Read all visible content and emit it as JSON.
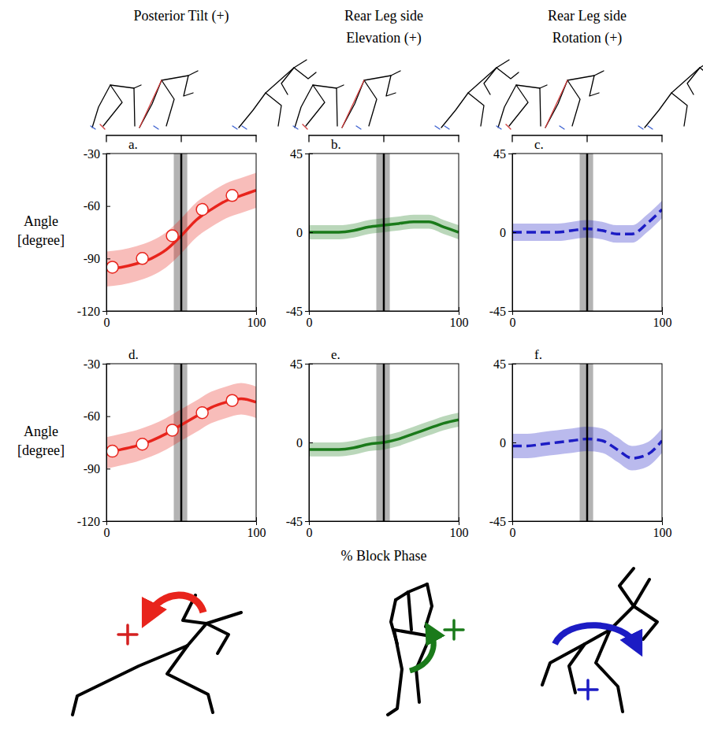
{
  "chart_data": [
    {
      "type": "line",
      "panel_label": "a.",
      "title": "Posterior Tilt (+)",
      "ylabel": "Angle [degree]",
      "x": [
        0,
        10,
        20,
        30,
        40,
        50,
        60,
        70,
        80,
        90,
        100
      ],
      "series": [
        {
          "values": [
            -96,
            -95,
            -93,
            -90,
            -85,
            -77,
            -68,
            -62,
            -57,
            -54,
            -51
          ],
          "lower": [
            -106,
            -105,
            -103,
            -100,
            -95,
            -87,
            -78,
            -72,
            -67,
            -64,
            -61
          ],
          "upper": [
            -86,
            -85,
            -83,
            -80,
            -75,
            -67,
            -58,
            -52,
            -47,
            -44,
            -41
          ],
          "color": "#e8241c",
          "line_style": "solid"
        },
        {
          "type": "scatter",
          "x": [
            4,
            24,
            44,
            64,
            84
          ],
          "values": [
            -95,
            -90,
            -77,
            -62,
            -54
          ],
          "color": "#e8241c",
          "marker": "circle"
        }
      ],
      "vline": 50,
      "vline_band": [
        45,
        54
      ],
      "xlim": [
        0,
        100
      ],
      "xticks": [
        0,
        100
      ],
      "ylim": [
        -120,
        -30
      ],
      "yticks": [
        -120,
        -90,
        -60,
        -30
      ]
    },
    {
      "type": "line",
      "panel_label": "b.",
      "title": "Rear Leg side Elevation (+)",
      "x": [
        0,
        10,
        20,
        30,
        40,
        50,
        60,
        70,
        80,
        90,
        100
      ],
      "series": [
        {
          "values": [
            0,
            0,
            0,
            1,
            3,
            4,
            5,
            6,
            6,
            3,
            0
          ],
          "lower": [
            -4,
            -4,
            -4,
            -3,
            -1,
            0,
            1,
            2,
            2,
            -1,
            -4
          ],
          "upper": [
            4,
            4,
            4,
            5,
            7,
            8,
            9,
            10,
            10,
            7,
            4
          ],
          "color": "#1a7a1a",
          "line_style": "solid"
        }
      ],
      "vline": 50,
      "vline_band": [
        45,
        54
      ],
      "xlim": [
        0,
        100
      ],
      "xticks": [
        0,
        100
      ],
      "ylim": [
        -45,
        45
      ],
      "yticks": [
        -45,
        0,
        45
      ]
    },
    {
      "type": "line",
      "panel_label": "c.",
      "title": "Rear Leg side Rotation (+)",
      "x": [
        0,
        10,
        20,
        30,
        40,
        50,
        60,
        70,
        80,
        90,
        100
      ],
      "series": [
        {
          "values": [
            0,
            0,
            0,
            0,
            1,
            2,
            1,
            -1,
            -1,
            5,
            13
          ],
          "lower": [
            -5,
            -5,
            -5,
            -5,
            -4,
            -3,
            -4,
            -6,
            -6,
            0,
            8
          ],
          "upper": [
            5,
            5,
            5,
            5,
            6,
            7,
            6,
            4,
            4,
            10,
            18
          ],
          "color": "#1c1cc4",
          "line_style": "dashed"
        }
      ],
      "vline": 50,
      "vline_band": [
        45,
        54
      ],
      "xlim": [
        0,
        100
      ],
      "xticks": [
        0,
        100
      ],
      "ylim": [
        -45,
        45
      ],
      "yticks": [
        -45,
        0,
        45
      ]
    },
    {
      "type": "line",
      "panel_label": "d.",
      "ylabel": "Angle [degree]",
      "x": [
        0,
        10,
        20,
        30,
        40,
        50,
        60,
        70,
        80,
        90,
        100
      ],
      "series": [
        {
          "values": [
            -81,
            -79,
            -77,
            -74,
            -70,
            -65,
            -60,
            -55,
            -52,
            -50,
            -52
          ],
          "lower": [
            -90,
            -88,
            -86,
            -83,
            -79,
            -74,
            -69,
            -64,
            -61,
            -59,
            -61
          ],
          "upper": [
            -72,
            -70,
            -68,
            -65,
            -61,
            -56,
            -51,
            -46,
            -43,
            -41,
            -43
          ],
          "color": "#e8241c",
          "line_style": "solid"
        },
        {
          "type": "scatter",
          "x": [
            4,
            24,
            44,
            64,
            84
          ],
          "values": [
            -80,
            -76,
            -68,
            -58,
            -51
          ],
          "color": "#e8241c",
          "marker": "circle"
        }
      ],
      "vline": 50,
      "vline_band": [
        45,
        54
      ],
      "xlim": [
        0,
        100
      ],
      "xticks": [
        0,
        100
      ],
      "ylim": [
        -120,
        -30
      ],
      "yticks": [
        -120,
        -90,
        -60,
        -30
      ]
    },
    {
      "type": "line",
      "panel_label": "e.",
      "xlabel": "% Block Phase",
      "x": [
        0,
        10,
        20,
        30,
        40,
        50,
        60,
        70,
        80,
        90,
        100
      ],
      "series": [
        {
          "values": [
            -4,
            -4,
            -4,
            -3,
            -1,
            0,
            2,
            5,
            8,
            11,
            13
          ],
          "lower": [
            -8,
            -8,
            -8,
            -7,
            -5,
            -4,
            -2,
            1,
            4,
            7,
            9
          ],
          "upper": [
            0,
            0,
            0,
            1,
            3,
            4,
            6,
            9,
            12,
            15,
            17
          ],
          "color": "#1a7a1a",
          "line_style": "solid"
        }
      ],
      "vline": 50,
      "vline_band": [
        45,
        54
      ],
      "xlim": [
        0,
        100
      ],
      "xticks": [
        0,
        100
      ],
      "ylim": [
        -45,
        45
      ],
      "yticks": [
        -45,
        0,
        45
      ]
    },
    {
      "type": "line",
      "panel_label": "f.",
      "x": [
        0,
        10,
        20,
        30,
        40,
        50,
        60,
        70,
        80,
        90,
        100
      ],
      "series": [
        {
          "values": [
            -2,
            -2,
            -1,
            0,
            1,
            2,
            1,
            -4,
            -9,
            -7,
            1
          ],
          "lower": [
            -9,
            -9,
            -8,
            -7,
            -6,
            -5,
            -6,
            -11,
            -16,
            -14,
            -6
          ],
          "upper": [
            5,
            5,
            6,
            7,
            8,
            9,
            8,
            3,
            -2,
            0,
            8
          ],
          "color": "#1c1cc4",
          "line_style": "dashed"
        }
      ],
      "vline": 50,
      "vline_band": [
        45,
        54
      ],
      "xlim": [
        0,
        100
      ],
      "xticks": [
        0,
        100
      ],
      "ylim": [
        -45,
        45
      ],
      "yticks": [
        -45,
        0,
        45
      ]
    }
  ]
}
